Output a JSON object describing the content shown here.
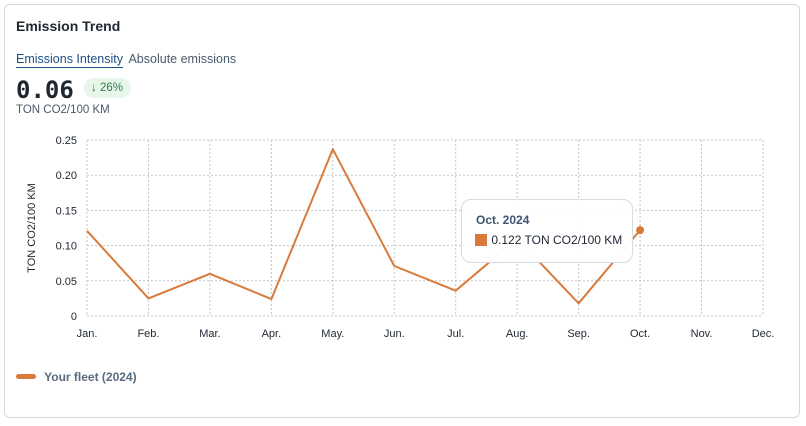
{
  "card": {
    "title": "Emission Trend",
    "tabs": [
      {
        "label": "Emissions Intensity",
        "active": true
      },
      {
        "label": "Absolute emissions",
        "active": false
      }
    ],
    "kpi_value": "0.06",
    "kpi_change": "26%",
    "kpi_arrow": "↓",
    "kpi_unit": "TON CO2/100 KM"
  },
  "tooltip": {
    "title": "Oct. 2024",
    "value_text": "0.122 TON CO2/100 KM"
  },
  "colors": {
    "series": "#d97a3a",
    "grid": "#c4c4c4",
    "badge_bg": "#e8f6ea",
    "badge_text": "#2e7d45"
  },
  "chart_data": {
    "type": "line",
    "categories": [
      "Jan.",
      "Feb.",
      "Mar.",
      "Apr.",
      "May.",
      "Jun.",
      "Jul.",
      "Aug.",
      "Sep.",
      "Oct.",
      "Nov.",
      "Dec."
    ],
    "series": [
      {
        "name": "Your fleet (2024)",
        "values": [
          0.121,
          0.025,
          0.06,
          0.024,
          0.237,
          0.071,
          0.036,
          0.11,
          0.018,
          0.122,
          null,
          null
        ]
      }
    ],
    "ylabel": "TON CO2/100 KM",
    "ylim": [
      0,
      0.25
    ],
    "yticks": [
      0,
      0.05,
      0.1,
      0.15,
      0.2,
      0.25
    ],
    "ytick_labels": [
      "0",
      "0.05",
      "0.10",
      "0.15",
      "0.20",
      "0.25"
    ],
    "grid": true,
    "grid_style": "dotted",
    "legend_position": "bottom-left"
  }
}
